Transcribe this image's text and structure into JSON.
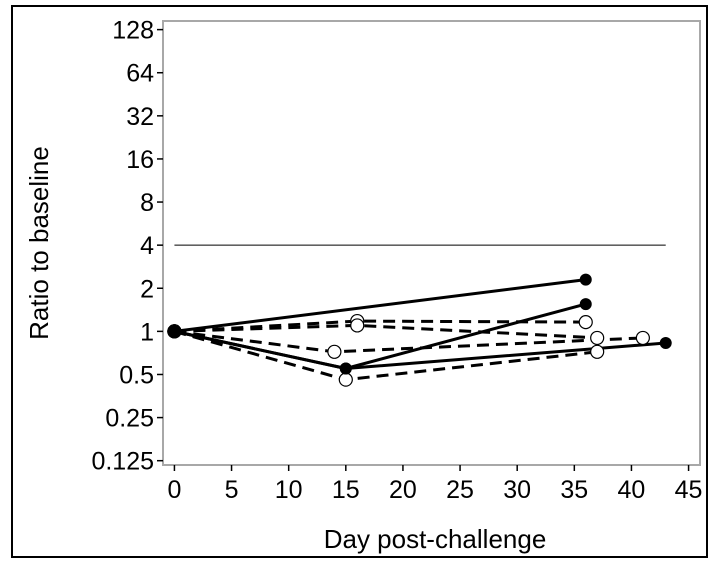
{
  "chart_data": {
    "type": "line",
    "title": "",
    "xlabel": "Day post-challenge",
    "ylabel": "Ratio to baseline",
    "xlim": [
      -1,
      46
    ],
    "ylim": [
      0.125,
      128
    ],
    "yscale": "log2",
    "x_ticks": [
      0,
      5,
      10,
      15,
      20,
      25,
      30,
      35,
      40,
      45
    ],
    "x_tick_labels": [
      "0",
      "5",
      "10",
      "15",
      "20",
      "25",
      "30",
      "35",
      "40",
      "45"
    ],
    "y_ticks": [
      0.125,
      0.25,
      0.5,
      1,
      2,
      4,
      8,
      16,
      32,
      64,
      128
    ],
    "y_tick_labels": [
      "0.125",
      "0.25",
      "0.5",
      "1",
      "2",
      "4",
      "8",
      "16",
      "32",
      "64",
      "128"
    ],
    "grid": false,
    "reference_line": {
      "y": 4,
      "x_range": [
        0,
        43
      ]
    },
    "series": [
      {
        "style": "solid",
        "marker": "filled",
        "x": [
          0,
          36
        ],
        "y": [
          1.0,
          2.3
        ]
      },
      {
        "style": "solid",
        "marker": "filled",
        "x": [
          0,
          15,
          36
        ],
        "y": [
          1.0,
          0.55,
          1.55
        ]
      },
      {
        "style": "solid",
        "marker": "filled",
        "x": [
          0,
          15,
          43
        ],
        "y": [
          1.0,
          0.55,
          0.83
        ]
      },
      {
        "style": "dashed",
        "marker": "open",
        "x": [
          0,
          16,
          36
        ],
        "y": [
          1.0,
          1.18,
          1.16
        ]
      },
      {
        "style": "dashed",
        "marker": "open",
        "x": [
          0,
          16,
          37
        ],
        "y": [
          1.0,
          1.1,
          0.9
        ]
      },
      {
        "style": "dashed",
        "marker": "open",
        "x": [
          0,
          14,
          41
        ],
        "y": [
          1.0,
          0.72,
          0.9
        ]
      },
      {
        "style": "dashed",
        "marker": "open",
        "x": [
          0,
          15,
          37
        ],
        "y": [
          1.0,
          0.46,
          0.72
        ]
      }
    ]
  }
}
